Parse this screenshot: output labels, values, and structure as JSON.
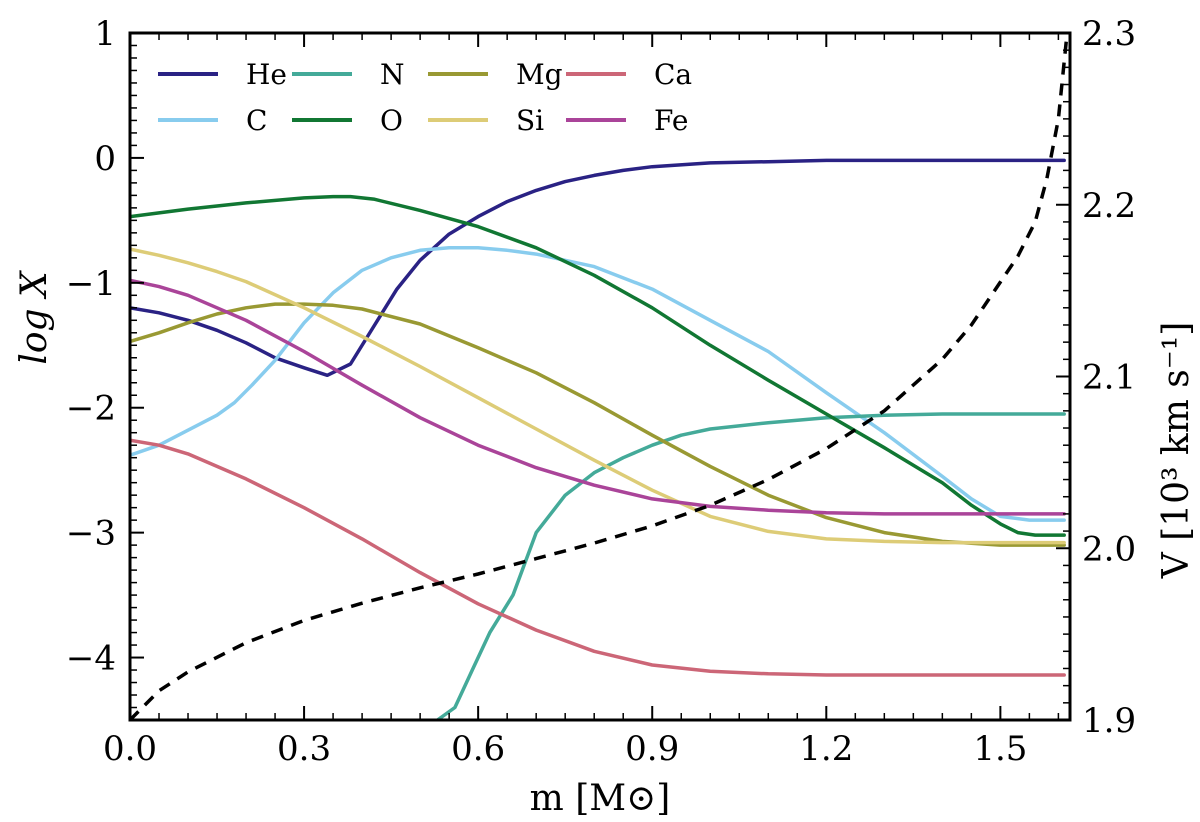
{
  "chart_data": {
    "type": "line",
    "title": "",
    "xlabel": "m [M⊙]",
    "ylabel": "log X",
    "y2label": "V [10³ km s⁻¹]",
    "xlim": [
      0.0,
      1.62
    ],
    "ylim": [
      -4.5,
      1.0
    ],
    "y2lim": [
      1.9,
      2.3
    ],
    "xticks": [
      "0.0",
      "0.3",
      "0.6",
      "0.9",
      "1.2",
      "1.5"
    ],
    "xtick_values": [
      0.0,
      0.3,
      0.6,
      0.9,
      1.2,
      1.5
    ],
    "yticks": [
      "1",
      "0",
      "−1",
      "−2",
      "−3",
      "−4"
    ],
    "ytick_values": [
      1,
      0,
      -1,
      -2,
      -3,
      -4
    ],
    "y2ticks": [
      "2.3",
      "2.2",
      "2.1",
      "2.0",
      "1.9"
    ],
    "y2tick_values": [
      2.3,
      2.2,
      2.1,
      2.0,
      1.9
    ],
    "legend_position": "top-left",
    "series": [
      {
        "name": "He",
        "color": "#2a2284",
        "axis": "left",
        "x": [
          0.0,
          0.05,
          0.1,
          0.15,
          0.2,
          0.25,
          0.3,
          0.34,
          0.38,
          0.42,
          0.46,
          0.5,
          0.55,
          0.6,
          0.65,
          0.7,
          0.75,
          0.8,
          0.85,
          0.9,
          1.0,
          1.1,
          1.2,
          1.3,
          1.4,
          1.5,
          1.61
        ],
        "y": [
          -1.2,
          -1.24,
          -1.3,
          -1.38,
          -1.48,
          -1.6,
          -1.68,
          -1.74,
          -1.65,
          -1.35,
          -1.05,
          -0.82,
          -0.61,
          -0.47,
          -0.35,
          -0.26,
          -0.19,
          -0.14,
          -0.1,
          -0.07,
          -0.04,
          -0.03,
          -0.02,
          -0.02,
          -0.02,
          -0.02,
          -0.02
        ]
      },
      {
        "name": "C",
        "color": "#88ccee",
        "axis": "left",
        "x": [
          0.0,
          0.05,
          0.1,
          0.15,
          0.18,
          0.21,
          0.25,
          0.3,
          0.35,
          0.4,
          0.45,
          0.5,
          0.55,
          0.6,
          0.65,
          0.7,
          0.8,
          0.9,
          1.0,
          1.1,
          1.2,
          1.3,
          1.4,
          1.45,
          1.5,
          1.55,
          1.61
        ],
        "y": [
          -2.38,
          -2.3,
          -2.18,
          -2.06,
          -1.96,
          -1.82,
          -1.62,
          -1.32,
          -1.08,
          -0.9,
          -0.8,
          -0.74,
          -0.72,
          -0.72,
          -0.74,
          -0.77,
          -0.87,
          -1.05,
          -1.3,
          -1.55,
          -1.88,
          -2.2,
          -2.55,
          -2.73,
          -2.87,
          -2.9,
          -2.9
        ]
      },
      {
        "name": "N",
        "color": "#44aa99",
        "axis": "left",
        "x": [
          0.53,
          0.56,
          0.59,
          0.62,
          0.66,
          0.7,
          0.75,
          0.8,
          0.85,
          0.9,
          0.95,
          1.0,
          1.1,
          1.2,
          1.3,
          1.4,
          1.5,
          1.61
        ],
        "y": [
          -4.5,
          -4.4,
          -4.1,
          -3.8,
          -3.5,
          -3.0,
          -2.7,
          -2.52,
          -2.4,
          -2.3,
          -2.22,
          -2.17,
          -2.12,
          -2.08,
          -2.06,
          -2.05,
          -2.05,
          -2.05
        ]
      },
      {
        "name": "O",
        "color": "#117733",
        "axis": "left",
        "x": [
          0.0,
          0.05,
          0.1,
          0.2,
          0.3,
          0.35,
          0.38,
          0.42,
          0.5,
          0.6,
          0.7,
          0.8,
          0.9,
          1.0,
          1.1,
          1.2,
          1.3,
          1.4,
          1.45,
          1.5,
          1.53,
          1.56,
          1.61
        ],
        "y": [
          -0.47,
          -0.44,
          -0.41,
          -0.36,
          -0.32,
          -0.31,
          -0.31,
          -0.33,
          -0.42,
          -0.55,
          -0.72,
          -0.94,
          -1.2,
          -1.5,
          -1.78,
          -2.05,
          -2.32,
          -2.6,
          -2.78,
          -2.93,
          -3.0,
          -3.02,
          -3.02
        ]
      },
      {
        "name": "Mg",
        "color": "#999933",
        "axis": "left",
        "x": [
          0.0,
          0.05,
          0.1,
          0.15,
          0.2,
          0.25,
          0.3,
          0.35,
          0.4,
          0.5,
          0.6,
          0.7,
          0.8,
          0.9,
          1.0,
          1.1,
          1.2,
          1.3,
          1.4,
          1.5,
          1.61
        ],
        "y": [
          -1.47,
          -1.4,
          -1.32,
          -1.25,
          -1.2,
          -1.17,
          -1.17,
          -1.18,
          -1.21,
          -1.33,
          -1.52,
          -1.72,
          -1.96,
          -2.22,
          -2.47,
          -2.7,
          -2.88,
          -3.0,
          -3.07,
          -3.1,
          -3.1
        ]
      },
      {
        "name": "Si",
        "color": "#ddcc77",
        "axis": "left",
        "x": [
          0.0,
          0.05,
          0.1,
          0.15,
          0.2,
          0.3,
          0.4,
          0.5,
          0.6,
          0.7,
          0.8,
          0.9,
          1.0,
          1.1,
          1.2,
          1.3,
          1.4,
          1.5,
          1.61
        ],
        "y": [
          -0.73,
          -0.78,
          -0.84,
          -0.91,
          -0.99,
          -1.2,
          -1.43,
          -1.67,
          -1.92,
          -2.17,
          -2.42,
          -2.66,
          -2.87,
          -2.99,
          -3.05,
          -3.07,
          -3.08,
          -3.08,
          -3.08
        ]
      },
      {
        "name": "Ca",
        "color": "#cc6677",
        "axis": "left",
        "x": [
          0.0,
          0.05,
          0.1,
          0.2,
          0.3,
          0.4,
          0.5,
          0.6,
          0.7,
          0.8,
          0.9,
          1.0,
          1.1,
          1.2,
          1.3,
          1.4,
          1.5,
          1.61
        ],
        "y": [
          -2.26,
          -2.3,
          -2.37,
          -2.57,
          -2.8,
          -3.05,
          -3.32,
          -3.57,
          -3.78,
          -3.95,
          -4.06,
          -4.11,
          -4.13,
          -4.14,
          -4.14,
          -4.14,
          -4.14,
          -4.14
        ]
      },
      {
        "name": "Fe",
        "color": "#aa4499",
        "axis": "left",
        "x": [
          0.0,
          0.05,
          0.1,
          0.2,
          0.3,
          0.4,
          0.5,
          0.6,
          0.7,
          0.8,
          0.9,
          1.0,
          1.1,
          1.2,
          1.3,
          1.4,
          1.5,
          1.61
        ],
        "y": [
          -0.98,
          -1.03,
          -1.1,
          -1.3,
          -1.55,
          -1.82,
          -2.08,
          -2.3,
          -2.48,
          -2.62,
          -2.73,
          -2.79,
          -2.82,
          -2.84,
          -2.85,
          -2.85,
          -2.85,
          -2.85
        ]
      },
      {
        "name": "V",
        "color": "#000000",
        "axis": "right",
        "style": "dashed",
        "x": [
          0.0,
          0.05,
          0.1,
          0.2,
          0.3,
          0.4,
          0.5,
          0.6,
          0.7,
          0.8,
          0.9,
          1.0,
          1.1,
          1.2,
          1.3,
          1.4,
          1.45,
          1.5,
          1.53,
          1.56,
          1.58,
          1.6,
          1.615
        ],
        "y": [
          1.9,
          1.917,
          1.928,
          1.945,
          1.958,
          1.968,
          1.977,
          1.985,
          1.994,
          2.003,
          2.013,
          2.025,
          2.04,
          2.058,
          2.08,
          2.11,
          2.13,
          2.155,
          2.17,
          2.19,
          2.215,
          2.25,
          2.3
        ]
      }
    ]
  }
}
